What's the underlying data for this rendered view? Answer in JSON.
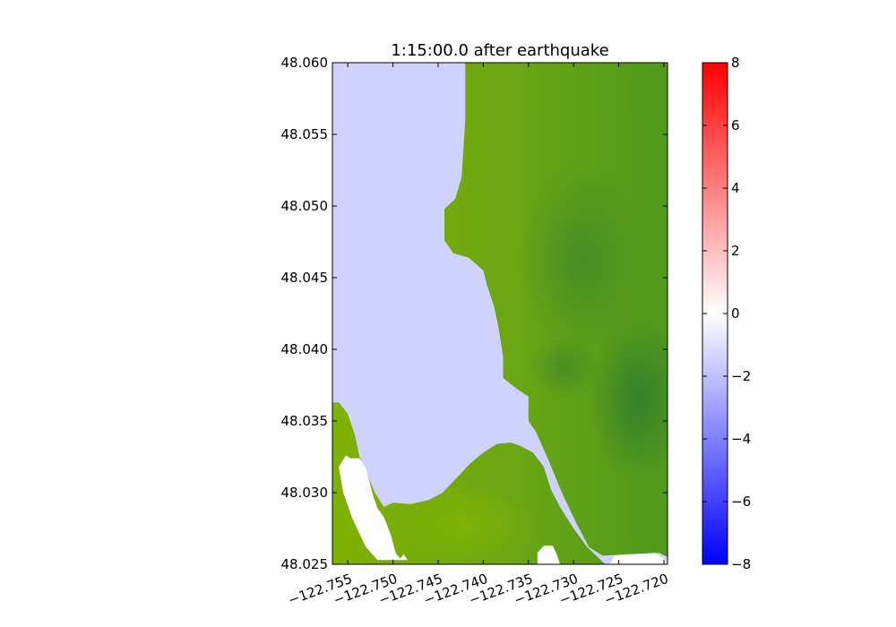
{
  "chart_data": {
    "type": "heatmap",
    "title": "1:15:00.0 after earthquake",
    "xlabel": "",
    "ylabel": "",
    "xlim": [
      -122.7567,
      -122.7196
    ],
    "ylim": [
      48.025,
      48.06
    ],
    "x_ticks": [
      -122.755,
      -122.75,
      -122.745,
      -122.74,
      -122.735,
      -122.73,
      -122.725,
      -122.72
    ],
    "x_tick_labels": [
      "−122.755",
      "−122.750",
      "−122.745",
      "−122.740",
      "−122.735",
      "−122.730",
      "−122.725",
      "−122.720"
    ],
    "y_ticks": [
      48.025,
      48.03,
      48.035,
      48.04,
      48.045,
      48.05,
      48.055,
      48.06
    ],
    "y_tick_labels": [
      "48.025",
      "48.030",
      "48.035",
      "48.040",
      "48.045",
      "48.050",
      "48.055",
      "48.060"
    ],
    "grid": false,
    "colorbar": {
      "range": [
        -8,
        8
      ],
      "ticks": [
        8,
        6,
        4,
        2,
        0,
        -2,
        -4,
        -6,
        -8
      ],
      "tick_labels": [
        "8",
        "6",
        "4",
        "2",
        "0",
        "−2",
        "−4",
        "−6",
        "−8"
      ],
      "colormap": [
        "#0000ff",
        "#ffffff",
        "#ff0000"
      ]
    },
    "water_color": "#cfd2fd",
    "land_colors": [
      "#7fb200",
      "#4a9020",
      "#367f2a"
    ],
    "dry_color": "#ffffff",
    "water_region": [
      [
        -122.7567,
        48.0363
      ],
      [
        -122.7567,
        48.06
      ],
      [
        -122.742,
        48.06
      ],
      [
        -122.742,
        48.056
      ],
      [
        -122.7424,
        48.052
      ],
      [
        -122.7431,
        48.0505
      ],
      [
        -122.7443,
        48.0498
      ],
      [
        -122.7443,
        48.0476
      ],
      [
        -122.7433,
        48.0467
      ],
      [
        -122.7416,
        48.0464
      ],
      [
        -122.74,
        48.0455
      ],
      [
        -122.7396,
        48.0445
      ],
      [
        -122.7388,
        48.043
      ],
      [
        -122.7383,
        48.0415
      ],
      [
        -122.7378,
        48.0395
      ],
      [
        -122.7378,
        48.038
      ],
      [
        -122.7362,
        48.0372
      ],
      [
        -122.735,
        48.0367
      ],
      [
        -122.735,
        48.035
      ],
      [
        -122.7342,
        48.0343
      ],
      [
        -122.7328,
        48.0323
      ],
      [
        -122.7313,
        48.03
      ],
      [
        -122.7298,
        48.028
      ],
      [
        -122.7283,
        48.0262
      ],
      [
        -122.7268,
        48.0256
      ],
      [
        -122.724,
        48.0257
      ],
      [
        -122.7205,
        48.0258
      ],
      [
        -122.7196,
        48.0255
      ],
      [
        -122.7196,
        48.025
      ],
      [
        -122.7265,
        48.025
      ],
      [
        -122.7285,
        48.0262
      ],
      [
        -122.73,
        48.0275
      ],
      [
        -122.7315,
        48.029
      ],
      [
        -122.7325,
        48.0302
      ],
      [
        -122.7333,
        48.0318
      ],
      [
        -122.7345,
        48.0328
      ],
      [
        -122.736,
        48.0333
      ],
      [
        -122.737,
        48.0335
      ],
      [
        -122.7385,
        48.0334
      ],
      [
        -122.74,
        48.0328
      ],
      [
        -122.7415,
        48.032
      ],
      [
        -122.743,
        48.031
      ],
      [
        -122.7445,
        48.03
      ],
      [
        -122.746,
        48.0295
      ],
      [
        -122.748,
        48.0292
      ],
      [
        -122.75,
        48.0293
      ],
      [
        -122.751,
        48.029
      ],
      [
        -122.752,
        48.03
      ],
      [
        -122.753,
        48.0315
      ],
      [
        -122.7537,
        48.0325
      ],
      [
        -122.7542,
        48.034
      ],
      [
        -122.755,
        48.0355
      ],
      [
        -122.756,
        48.0363
      ]
    ],
    "dry_regions": [
      [
        [
          -122.7547,
          48.0324
        ],
        [
          -122.7537,
          48.0324
        ],
        [
          -122.753,
          48.0317
        ],
        [
          -122.7522,
          48.0298
        ],
        [
          -122.7517,
          48.0289
        ],
        [
          -122.751,
          48.0283
        ],
        [
          -122.7502,
          48.027
        ],
        [
          -122.7497,
          48.0258
        ],
        [
          -122.7492,
          48.0254
        ],
        [
          -122.7488,
          48.0257
        ],
        [
          -122.7484,
          48.0253
        ],
        [
          -122.7517,
          48.0253
        ],
        [
          -122.753,
          48.0262
        ],
        [
          -122.7545,
          48.0282
        ],
        [
          -122.7555,
          48.03
        ],
        [
          -122.756,
          48.0318
        ],
        [
          -122.7552,
          48.0326
        ]
      ],
      [
        [
          -122.734,
          48.025
        ],
        [
          -122.734,
          48.0258
        ],
        [
          -122.7333,
          48.0263
        ],
        [
          -122.7323,
          48.0263
        ],
        [
          -122.7318,
          48.0256
        ],
        [
          -122.7315,
          48.025
        ]
      ],
      [
        [
          -122.7255,
          48.0256
        ],
        [
          -122.721,
          48.0258
        ],
        [
          -122.72,
          48.0254
        ],
        [
          -122.7196,
          48.025
        ],
        [
          -122.726,
          48.025
        ]
      ]
    ]
  }
}
